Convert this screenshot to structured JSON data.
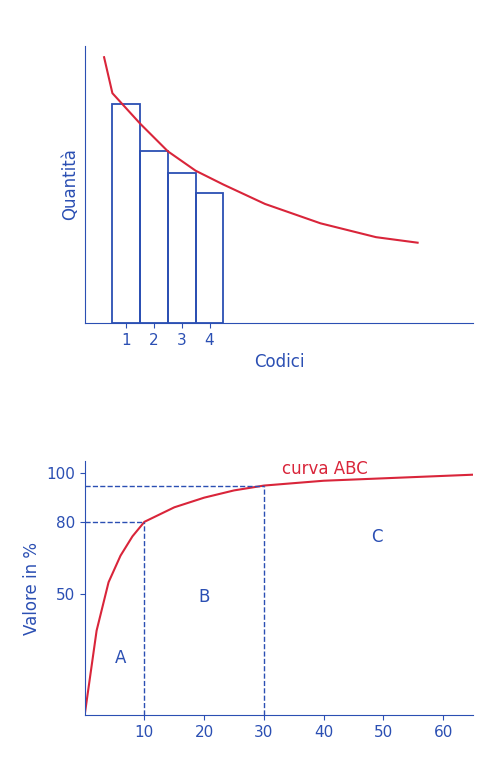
{
  "chart_data": [
    {
      "type": "bar",
      "x_label": "Codici",
      "y_label": "Quantità",
      "xlim": [
        -0.5,
        13.5
      ],
      "ylim": [
        0,
        100
      ],
      "xticks": [
        1,
        2,
        3,
        4
      ],
      "tick_labels": "x",
      "series": [
        {
          "type": "bar",
          "color": "#2b4fb3",
          "x": [
            1,
            2,
            3,
            4
          ],
          "values": [
            79,
            62,
            54,
            47
          ]
        },
        {
          "type": "line",
          "color": "#d9253a",
          "x": [
            0.2,
            0.5,
            1.5,
            2.5,
            3.5,
            4.5,
            6,
            8,
            10,
            11.5
          ],
          "values": [
            96,
            83,
            72,
            62,
            55,
            50,
            43,
            36,
            31,
            29
          ]
        }
      ]
    },
    {
      "type": "line",
      "y_label": "Valore in %",
      "xlim": [
        0,
        65
      ],
      "ylim": [
        0,
        105
      ],
      "xticks": [
        10,
        20,
        30,
        40,
        50,
        60
      ],
      "yticks": [
        50,
        80,
        100
      ],
      "series": [
        {
          "type": "line",
          "color": "#d9253a",
          "x": [
            0,
            2,
            4,
            6,
            8,
            10,
            15,
            20,
            25,
            30,
            40,
            50,
            60,
            65
          ],
          "values": [
            0,
            35,
            55,
            66,
            74,
            80,
            86,
            90,
            93,
            95,
            97,
            98,
            99,
            99.5
          ]
        }
      ],
      "boundaries": [
        {
          "x": 10,
          "y": 80
        },
        {
          "x": 30,
          "y": 95
        }
      ],
      "annotations": [
        {
          "text": "curva ABC",
          "x": 33,
          "y": 98,
          "color": "#d9253a"
        },
        {
          "text": "A",
          "x": 5,
          "y": 20,
          "color": "#2b4fb3"
        },
        {
          "text": "B",
          "x": 19,
          "y": 45,
          "color": "#2b4fb3"
        },
        {
          "text": "C",
          "x": 48,
          "y": 70,
          "color": "#2b4fb3"
        }
      ]
    }
  ]
}
